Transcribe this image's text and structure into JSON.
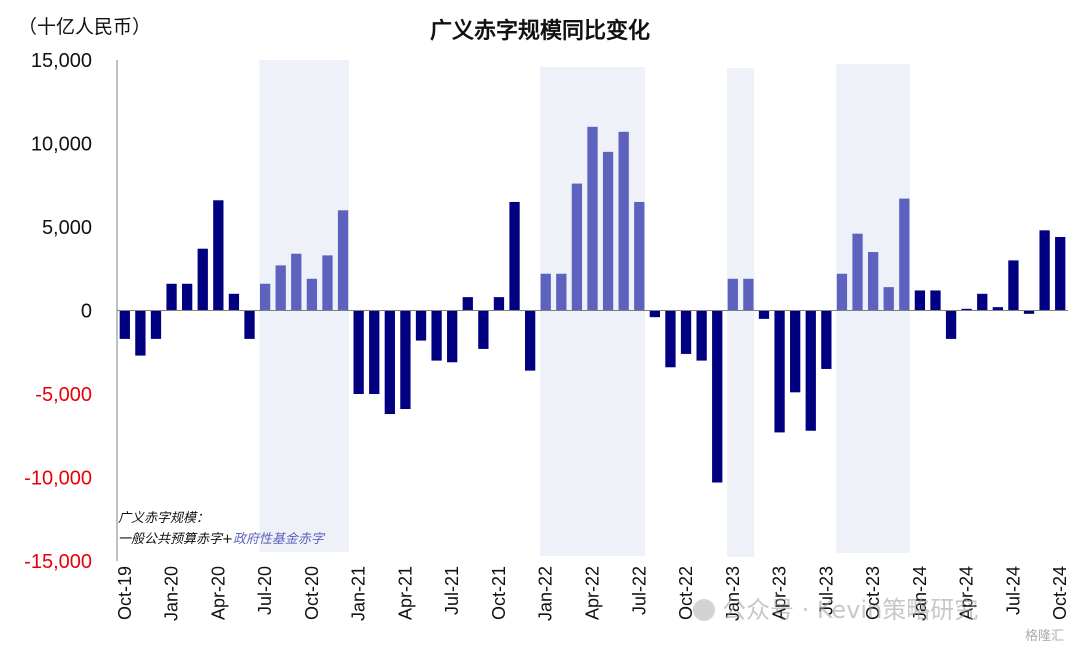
{
  "chart_data": {
    "type": "bar",
    "title": "广义赤字规模同比变化",
    "unit_label": "（十亿人民币）",
    "ylim": [
      -15000,
      15000
    ],
    "yticks": [
      15000,
      10000,
      5000,
      0,
      -5000,
      -10000,
      -15000
    ],
    "ytick_labels": [
      "15,000",
      "10,000",
      "5,000",
      "0",
      "-5,000",
      "-10,000",
      "-15,000"
    ],
    "xtick_labels": [
      "Oct-19",
      "Jan-20",
      "Apr-20",
      "Jul-20",
      "Oct-20",
      "Jan-21",
      "Apr-21",
      "Jul-21",
      "Oct-21",
      "Jan-22",
      "Apr-22",
      "Jul-22",
      "Oct-22",
      "Jan-23",
      "Apr-23",
      "Jul-23",
      "Oct-23",
      "Jan-24",
      "Apr-24",
      "Jul-24",
      "Oct-24"
    ],
    "annotation": {
      "line1": "广义赤字规模：",
      "line2a": "一般公共预算赤字+",
      "line2b": "政府性基金赤字"
    },
    "colors": {
      "dark": "#000080",
      "light": "#5C62BE",
      "shade": "#EEF1F7",
      "negative_tick": "#E8000B"
    },
    "highlight_ranges": [
      [
        "Jul-20",
        "Dec-20"
      ],
      [
        "Jan-22",
        "Jul-22"
      ],
      [
        "Jan-23",
        "Feb-23"
      ],
      [
        "Aug-23",
        "Dec-23"
      ]
    ],
    "series": [
      {
        "months": [
          "Oct-19",
          "Nov-19",
          "Dec-19",
          "Jan-20",
          "Feb-20",
          "Mar-20",
          "Apr-20",
          "May-20",
          "Jun-20",
          "Jul-20",
          "Aug-20",
          "Sep-20",
          "Oct-20",
          "Nov-20",
          "Dec-20",
          "Jan-21",
          "Feb-21",
          "Mar-21",
          "Apr-21",
          "May-21",
          "Jun-21",
          "Jul-21",
          "Aug-21",
          "Sep-21",
          "Oct-21",
          "Nov-21",
          "Dec-21",
          "Jan-22",
          "Feb-22",
          "Mar-22",
          "Apr-22",
          "May-22",
          "Jun-22",
          "Jul-22",
          "Aug-22",
          "Sep-22",
          "Oct-22",
          "Nov-22",
          "Dec-22",
          "Jan-23",
          "Feb-23",
          "Mar-23",
          "Apr-23",
          "May-23",
          "Jun-23",
          "Jul-23",
          "Aug-23",
          "Sep-23",
          "Oct-23",
          "Nov-23",
          "Dec-23",
          "Jan-24",
          "Feb-24",
          "Mar-24",
          "Apr-24",
          "May-24",
          "Jun-24",
          "Jul-24",
          "Aug-24",
          "Sep-24",
          "Oct-24"
        ],
        "values": [
          -1700,
          -2700,
          -1700,
          1600,
          1600,
          3700,
          6600,
          1000,
          -1700,
          1600,
          2700,
          3400,
          1900,
          3300,
          6000,
          -5000,
          -5000,
          -6200,
          -5900,
          -1800,
          -3000,
          -3100,
          800,
          -2300,
          800,
          6500,
          -3600,
          2200,
          2200,
          7600,
          11000,
          9500,
          10700,
          6500,
          -400,
          -3400,
          -2600,
          -3000,
          -10300,
          1900,
          1900,
          -500,
          -7300,
          -4900,
          -7200,
          -3500,
          2200,
          4600,
          3500,
          1400,
          6700,
          1200,
          1200,
          -1700,
          100,
          1000,
          200,
          3000,
          -200,
          4800,
          4400
        ]
      }
    ]
  },
  "watermark": {
    "main": "公众号 · Kevin策略研究",
    "sub": "格隆汇"
  }
}
